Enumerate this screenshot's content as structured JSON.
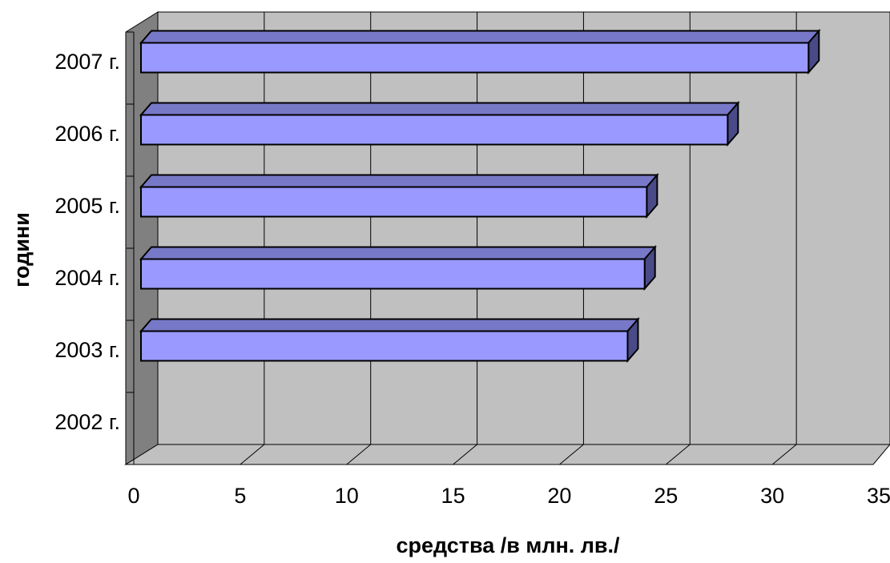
{
  "chart_data": {
    "type": "bar",
    "orientation": "horizontal",
    "style": "3d",
    "title": "",
    "xlabel": "средства /в млн. лв./",
    "ylabel": "години",
    "categories": [
      "2002 г.",
      "2003 г.",
      "2004 г.",
      "2005 г.",
      "2006 г.",
      "2007 г."
    ],
    "values": [
      0,
      23.2,
      24.0,
      24.1,
      27.9,
      31.7
    ],
    "xlim": [
      0,
      35
    ],
    "xticks": [
      "0",
      "5",
      "10",
      "15",
      "20",
      "25",
      "30",
      "35"
    ],
    "grid": true,
    "legend": "none",
    "colors": {
      "bar_front": "#9999ff",
      "bar_top": "#7878c8",
      "bar_side": "#4a4a88",
      "wall": "#c0c0c0",
      "side_wall": "#808080",
      "floor": "#c0c0c0",
      "gridline": "#000000"
    }
  }
}
